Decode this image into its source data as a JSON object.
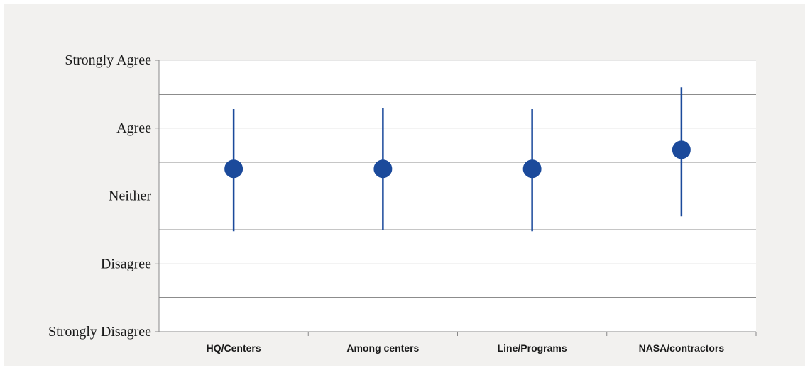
{
  "chart_data": {
    "type": "scatter",
    "title": "",
    "xlabel": "",
    "ylabel": "",
    "categories": [
      "HQ/Centers",
      "Among centers",
      "Line/Programs",
      "NASA/contractors"
    ],
    "y_ticks": [
      "Strongly Disagree",
      "Disagree",
      "Neither",
      "Agree",
      "Strongly Agree"
    ],
    "ylim": [
      1,
      5
    ],
    "series": [
      {
        "values": [
          3.4,
          3.4,
          3.4,
          3.68
        ],
        "err_low": [
          2.48,
          2.5,
          2.48,
          2.7
        ],
        "err_high": [
          4.28,
          4.3,
          4.28,
          4.6
        ]
      }
    ],
    "band_lines": [
      1.5,
      2.5,
      3.5,
      4.5
    ],
    "grid": true,
    "legend": "none",
    "colors": {
      "marker": "#1b4a9b",
      "errorbar": "#1b4a9b",
      "plot_bg": "#ffffff",
      "frame_bg": "#f2f1ef",
      "gridline": "#cfcfcf",
      "band_line": "#1a1a1a",
      "axis": "#888888"
    }
  }
}
